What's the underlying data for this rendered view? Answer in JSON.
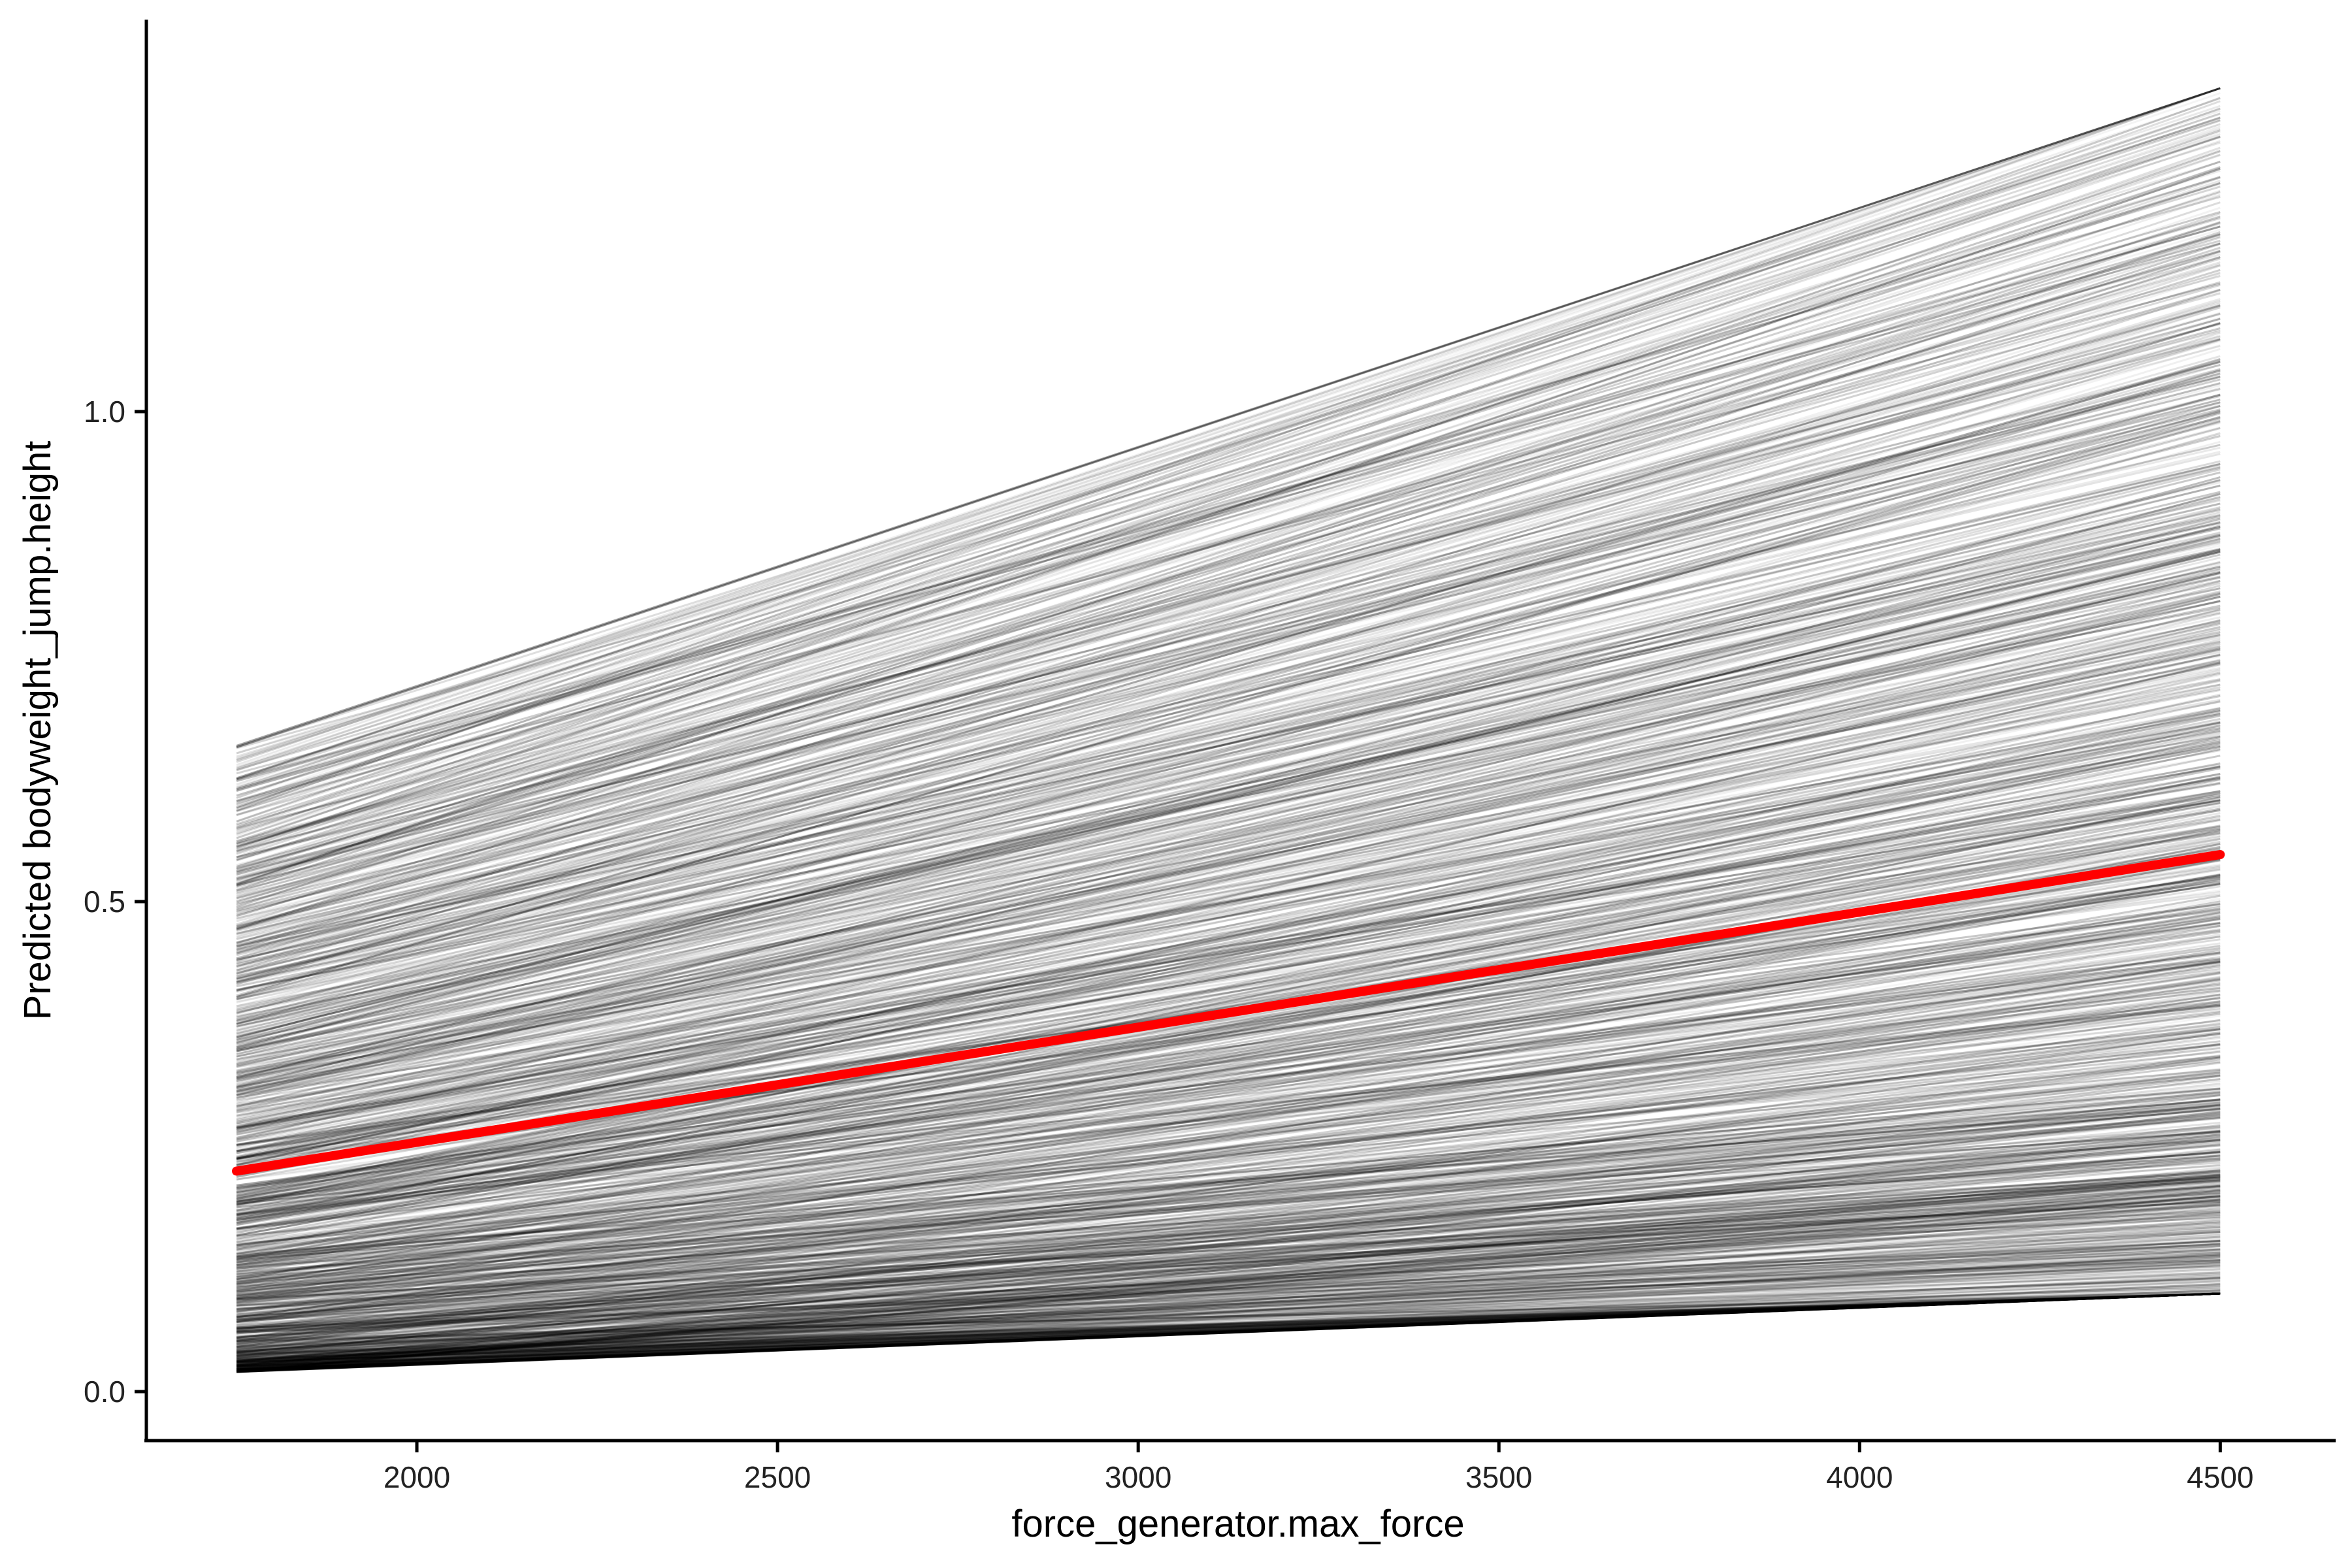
{
  "chart_data": {
    "type": "line",
    "title": "",
    "xlabel": "force_generator.max_force",
    "ylabel": "Predicted bodyweight_jump.height",
    "xlim": [
      1625,
      4660
    ],
    "ylim": [
      -0.05,
      1.4
    ],
    "x_ticks": [
      2000,
      2500,
      3000,
      3500,
      4000,
      4500
    ],
    "x_tick_labels": [
      "2000",
      "2500",
      "3000",
      "3500",
      "4000",
      "4500"
    ],
    "y_ticks": [
      0.0,
      0.5,
      1.0
    ],
    "y_tick_labels": [
      "0.0",
      "0.5",
      "1.0"
    ],
    "grid": false,
    "legend": "none",
    "ice_lines": {
      "count": 1200,
      "x_start": 1750,
      "x_end": 4500,
      "start_range": [
        0.02,
        0.66
      ],
      "end_range": [
        0.1,
        1.33
      ],
      "color": "#000000",
      "opacity_range": [
        0.04,
        0.22
      ]
    },
    "series": [
      {
        "x": [
          1750,
          4500
        ],
        "values": [
          0.225,
          0.548
        ],
        "color": "#ff0000"
      }
    ]
  }
}
